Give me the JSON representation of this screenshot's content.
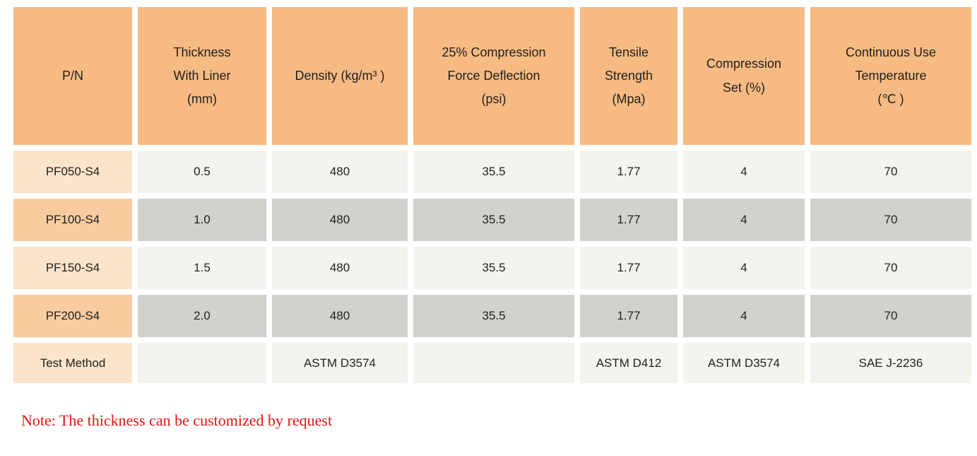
{
  "table": {
    "headers": [
      "P/N",
      "Thickness\nWith Liner\n(mm)",
      "Density (kg/m³ )",
      "25% Compression\nForce Deflection\n(psi)",
      "Tensile\nStrength\n(Mpa)",
      "Compression\nSet (%)",
      "Continuous Use\nTemperature\n(℃ )"
    ],
    "rows": [
      [
        "PF050-S4",
        "0.5",
        "480",
        "35.5",
        "1.77",
        "4",
        "70"
      ],
      [
        "PF100-S4",
        "1.0",
        "480",
        "35.5",
        "1.77",
        "4",
        "70"
      ],
      [
        "PF150-S4",
        "1.5",
        "480",
        "35.5",
        "1.77",
        "4",
        "70"
      ],
      [
        "PF200-S4",
        "2.0",
        "480",
        "35.5",
        "1.77",
        "4",
        "70"
      ],
      [
        "Test Method",
        "",
        "ASTM D3574",
        "",
        "ASTM D412",
        "ASTM D3574",
        "SAE J-2236"
      ]
    ]
  },
  "note": "Note: The thickness can be customized by request",
  "colors": {
    "header_bg": "#f6ba82",
    "pn_col_light": "#fce4ca",
    "pn_col_dark": "#f8cc9f",
    "data_cell_light": "#f4f4ef",
    "data_cell_dark": "#d2d2cc",
    "note_text": "#e41414",
    "body_text": "#1f1f1f"
  }
}
